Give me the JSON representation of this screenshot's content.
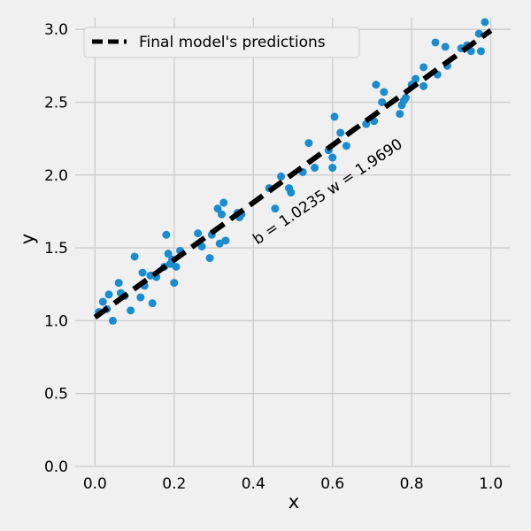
{
  "chart_data": {
    "type": "scatter",
    "title": "",
    "xlabel": "x",
    "ylabel": "y",
    "xlim": [
      -0.05,
      1.05
    ],
    "ylim": [
      0.0,
      3.08
    ],
    "xticks": [
      0.0,
      0.2,
      0.4,
      0.6,
      0.8,
      1.0
    ],
    "xtick_labels": [
      "0.0",
      "0.2",
      "0.4",
      "0.6",
      "0.8",
      "1.0"
    ],
    "yticks": [
      0.0,
      0.5,
      1.0,
      1.5,
      2.0,
      2.5,
      3.0
    ],
    "ytick_labels": [
      "0.0",
      "0.5",
      "1.0",
      "1.5",
      "2.0",
      "2.5",
      "3.0"
    ],
    "grid": true,
    "legend_position": "top-left",
    "colors": {
      "points": "#1a8ccf",
      "line": "#000000",
      "background": "#f0f0f0",
      "grid": "#cbcbcb"
    },
    "series": [
      {
        "kind": "scatter",
        "points": [
          [
            0.01,
            1.06
          ],
          [
            0.02,
            1.13
          ],
          [
            0.03,
            1.08
          ],
          [
            0.035,
            1.18
          ],
          [
            0.045,
            1.0
          ],
          [
            0.06,
            1.26
          ],
          [
            0.065,
            1.19
          ],
          [
            0.075,
            1.17
          ],
          [
            0.09,
            1.07
          ],
          [
            0.1,
            1.44
          ],
          [
            0.115,
            1.16
          ],
          [
            0.12,
            1.33
          ],
          [
            0.125,
            1.24
          ],
          [
            0.14,
            1.31
          ],
          [
            0.145,
            1.12
          ],
          [
            0.155,
            1.3
          ],
          [
            0.175,
            1.37
          ],
          [
            0.18,
            1.59
          ],
          [
            0.185,
            1.46
          ],
          [
            0.19,
            1.39
          ],
          [
            0.195,
            1.42
          ],
          [
            0.2,
            1.26
          ],
          [
            0.205,
            1.37
          ],
          [
            0.215,
            1.48
          ],
          [
            0.26,
            1.6
          ],
          [
            0.27,
            1.51
          ],
          [
            0.29,
            1.43
          ],
          [
            0.295,
            1.59
          ],
          [
            0.31,
            1.77
          ],
          [
            0.315,
            1.53
          ],
          [
            0.32,
            1.73
          ],
          [
            0.325,
            1.81
          ],
          [
            0.33,
            1.55
          ],
          [
            0.36,
            1.74
          ],
          [
            0.365,
            1.71
          ],
          [
            0.37,
            1.73
          ],
          [
            0.44,
            1.91
          ],
          [
            0.455,
            1.77
          ],
          [
            0.47,
            1.99
          ],
          [
            0.49,
            1.91
          ],
          [
            0.495,
            1.88
          ],
          [
            0.525,
            2.02
          ],
          [
            0.54,
            2.22
          ],
          [
            0.555,
            2.05
          ],
          [
            0.59,
            2.17
          ],
          [
            0.6,
            2.12
          ],
          [
            0.6,
            2.05
          ],
          [
            0.605,
            2.4
          ],
          [
            0.62,
            2.29
          ],
          [
            0.635,
            2.2
          ],
          [
            0.685,
            2.35
          ],
          [
            0.705,
            2.37
          ],
          [
            0.71,
            2.62
          ],
          [
            0.725,
            2.5
          ],
          [
            0.73,
            2.57
          ],
          [
            0.77,
            2.42
          ],
          [
            0.775,
            2.48
          ],
          [
            0.78,
            2.51
          ],
          [
            0.785,
            2.53
          ],
          [
            0.8,
            2.62
          ],
          [
            0.81,
            2.66
          ],
          [
            0.83,
            2.74
          ],
          [
            0.83,
            2.61
          ],
          [
            0.86,
            2.91
          ],
          [
            0.865,
            2.69
          ],
          [
            0.89,
            2.75
          ],
          [
            0.885,
            2.88
          ],
          [
            0.925,
            2.87
          ],
          [
            0.94,
            2.89
          ],
          [
            0.95,
            2.85
          ],
          [
            0.97,
            2.97
          ],
          [
            0.975,
            2.85
          ],
          [
            0.985,
            3.05
          ]
        ]
      },
      {
        "kind": "line",
        "name": "Final model's predictions",
        "style": "dashed",
        "b": 1.0235,
        "w": 1.969,
        "x_range": [
          0.0,
          1.0
        ]
      }
    ],
    "annotations": [
      {
        "text": "b = 1.0235 w = 1.9690",
        "x": 0.41,
        "y": 1.52,
        "angle_deg": -34
      }
    ]
  }
}
